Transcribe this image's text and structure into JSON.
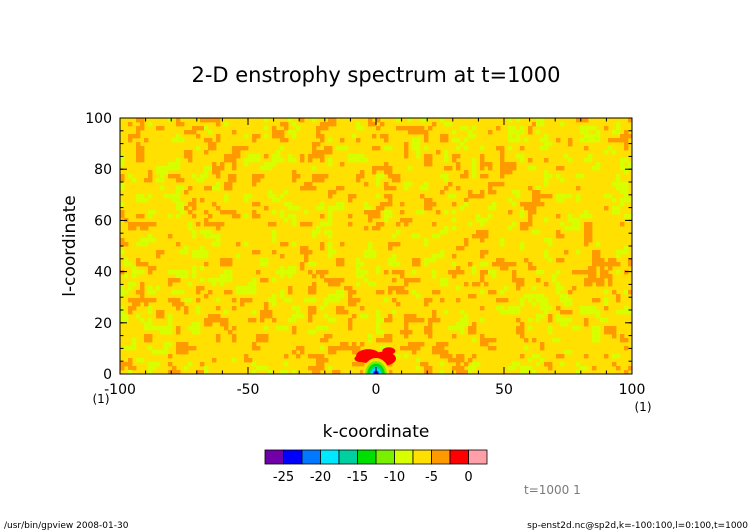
{
  "chart_data": {
    "type": "heatmap",
    "title": "2-D enstrophy spectrum at t=1000",
    "xlabel": "k-coordinate",
    "ylabel": "l-coordinate",
    "xlim": [
      -100,
      100
    ],
    "ylim": [
      0,
      100
    ],
    "x_ticks": [
      -100,
      -50,
      0,
      50,
      100
    ],
    "x_tick_labels": [
      "-100",
      "-50",
      "0",
      "50",
      "100"
    ],
    "y_ticks": [
      0,
      20,
      40,
      60,
      80,
      100
    ],
    "y_tick_labels": [
      "0",
      "20",
      "40",
      "60",
      "80",
      "100"
    ],
    "x_unit": "(1)",
    "y_unit": "(1)",
    "grid": false,
    "colorbar": {
      "orientation": "horizontal",
      "placement": "bottom",
      "levels": [
        -27.5,
        -25,
        -22.5,
        -20,
        -17.5,
        -15,
        -12.5,
        -10,
        -7.5,
        -5,
        -2.5,
        0,
        2.5
      ],
      "tick_values": [
        -25,
        -20,
        -15,
        -10,
        -5,
        0
      ],
      "tick_labels": [
        "-25",
        "-20",
        "-15",
        "-10",
        "-5",
        "0"
      ],
      "colors": [
        "#7000a8",
        "#0000ff",
        "#0078ff",
        "#00e8ff",
        "#00d0a0",
        "#00e000",
        "#78f000",
        "#d8ff00",
        "#ffe000",
        "#ff9900",
        "#ff0000",
        "#ffa0a8"
      ]
    },
    "field_description": {
      "dominant_range": [
        -7.5,
        -2.5
      ],
      "dominant_colors": [
        "#ffe000",
        "#ff9900"
      ],
      "background_level_range": [
        -10,
        -7.5
      ],
      "sparse_low_level_range": [
        -12.5,
        -10
      ],
      "central_peak": {
        "k": 0,
        "l": 5,
        "level_range": [
          -5,
          0
        ]
      },
      "origin_minimum": {
        "k": 0,
        "l": 0,
        "level_range": [
          -27.5,
          -20
        ]
      }
    },
    "annotation": "t=1000  1"
  },
  "footer": {
    "program": "/usr/bin/gpview   2008-01-30",
    "source": "sp-enst2d.nc@sp2d,k=-100:100,l=0:100,t=1000"
  }
}
